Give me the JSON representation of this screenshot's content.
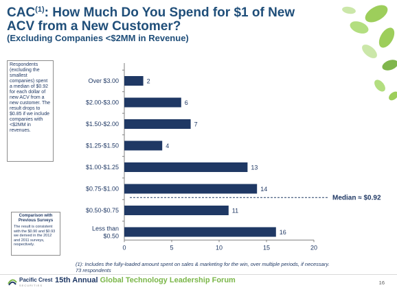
{
  "title": {
    "main_prefix": "CAC",
    "main_sup": "(1)",
    "main_rest": ": How Much Do You Spend for $1 of New ACV from a New Customer?",
    "subtitle": "(Excluding Companies <$2MM in Revenue)"
  },
  "note": "Respondents (excluding the smallest companies) spent a median of $0.92 for each dollar of new ACV from a new customer. The result drops to $0.85 if we include companies with <$2MM in revenues.",
  "comparison": {
    "heading": "Comparison with Previous Surveys",
    "text": "The result is consistent with the $0.90 and $0.93 we derived in the 2012 and 2011 surveys, respectively."
  },
  "footnote": {
    "line1": "(1): Includes the fully-loaded amount spent on sales & marketing for the win, over multiple periods, if necessary.",
    "line2": "73 respondents"
  },
  "footer": {
    "logo_name": "Pacific Crest",
    "logo_sub": "SECURITIES",
    "forum_prefix": "15th Annual",
    "forum_name": "Global Technology Leadership Forum",
    "page": "16"
  },
  "colors": {
    "bar": "#1f3864",
    "title": "#1f4e79",
    "accent_green": "#7ab648"
  },
  "chart_data": {
    "type": "bar",
    "orientation": "horizontal",
    "categories": [
      "Over $3.00",
      "$2.00-$3.00",
      "$1.50-$2.00",
      "$1.25-$1.50",
      "$1.00-$1.25",
      "$0.75-$1.00",
      "$0.50-$0.75",
      "Less than $0.50"
    ],
    "values": [
      2,
      6,
      7,
      4,
      13,
      14,
      11,
      16
    ],
    "xlim": [
      0,
      20
    ],
    "xticks": [
      0,
      5,
      10,
      15,
      20
    ],
    "median_label": "Median ≈ $0.92",
    "median_between": [
      "$0.75-$1.00",
      "$0.50-$0.75"
    ],
    "grid": false
  }
}
